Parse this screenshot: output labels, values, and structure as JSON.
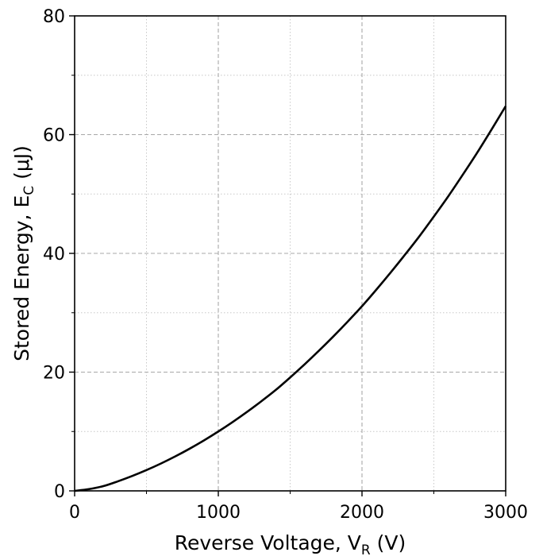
{
  "chart_data": {
    "type": "line",
    "title": "",
    "xlabel": {
      "main": "Reverse Voltage, V",
      "sub": "R",
      "unit": " (V)"
    },
    "ylabel": {
      "main": "Stored Energy, E",
      "sub": "C",
      "unit": " (μJ)"
    },
    "xlim": [
      0,
      3000
    ],
    "ylim": [
      0,
      80
    ],
    "x_ticks": [
      0,
      1000,
      2000,
      3000
    ],
    "x_tick_labels": [
      "0",
      "1000",
      "2000",
      "3000"
    ],
    "y_ticks": [
      0,
      20,
      40,
      60,
      80
    ],
    "y_tick_labels": [
      "0",
      "20",
      "40",
      "60",
      "80"
    ],
    "x_minor_ticks": [
      500,
      1500,
      2500
    ],
    "y_minor_ticks": [
      10,
      30,
      50,
      70
    ],
    "grid": {
      "major": "dashed",
      "minor": "dotted"
    },
    "legend": "none",
    "series": [
      {
        "color": "#000000",
        "x": [
          0,
          100,
          200,
          300,
          400,
          500,
          600,
          700,
          800,
          900,
          1000,
          1100,
          1200,
          1300,
          1400,
          1500,
          1600,
          1700,
          1800,
          1900,
          2000,
          2100,
          2200,
          2300,
          2400,
          2500,
          2600,
          2700,
          2800,
          2900,
          3000
        ],
        "y": [
          0,
          0.3,
          0.8,
          1.6,
          2.5,
          3.5,
          4.6,
          5.8,
          7.1,
          8.5,
          10.0,
          11.6,
          13.3,
          15.1,
          17.0,
          19.1,
          21.3,
          23.6,
          26.0,
          28.5,
          31.1,
          33.9,
          36.8,
          39.8,
          42.9,
          46.2,
          49.6,
          53.2,
          56.9,
          60.8,
          64.8
        ]
      }
    ]
  }
}
